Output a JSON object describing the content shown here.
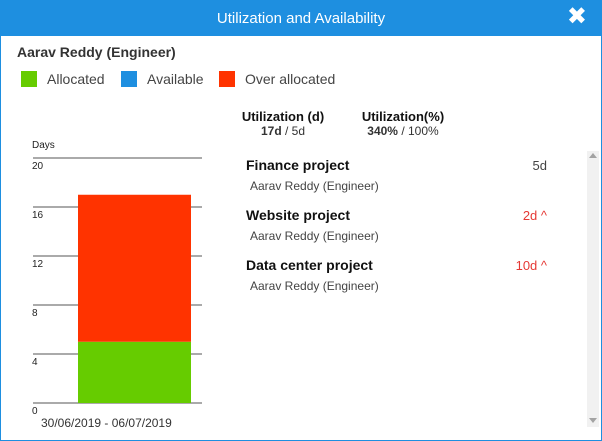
{
  "dialog": {
    "title": "Utilization and Availability",
    "close_icon": "close-icon"
  },
  "person": "Aarav Reddy (Engineer)",
  "legend": [
    {
      "label": "Allocated",
      "color": "#66cc00"
    },
    {
      "label": "Available",
      "color": "#1e8fe0"
    },
    {
      "label": "Over allocated",
      "color": "#ff3300"
    }
  ],
  "utilization": {
    "days_header": "Utilization (d)",
    "days_value": "17d",
    "days_sep": " / ",
    "days_capacity": "5d",
    "pct_header": "Utilization(%)",
    "pct_value": "340%",
    "pct_sep": " / ",
    "pct_capacity": "100%"
  },
  "chart_data": {
    "type": "bar",
    "ylabel": "Days",
    "ylim": [
      0,
      20
    ],
    "yticks": [
      "0",
      "4",
      "8",
      "12",
      "16",
      "20"
    ],
    "categories": [
      "30/06/2019 - 06/07/2019"
    ],
    "series": [
      {
        "name": "Allocated",
        "values": [
          5
        ],
        "color": "#66cc00"
      },
      {
        "name": "Over allocated",
        "values": [
          12
        ],
        "color": "#ff3300"
      }
    ],
    "stacked": true,
    "grid": true
  },
  "projects": [
    {
      "name": "Finance project",
      "assignee": "Aarav Reddy (Engineer)",
      "days": "5d",
      "over": false
    },
    {
      "name": "Website project",
      "assignee": "Aarav Reddy (Engineer)",
      "days": "2d ^",
      "over": true
    },
    {
      "name": "Data center project",
      "assignee": "Aarav Reddy (Engineer)",
      "days": "10d ^",
      "over": true
    }
  ]
}
